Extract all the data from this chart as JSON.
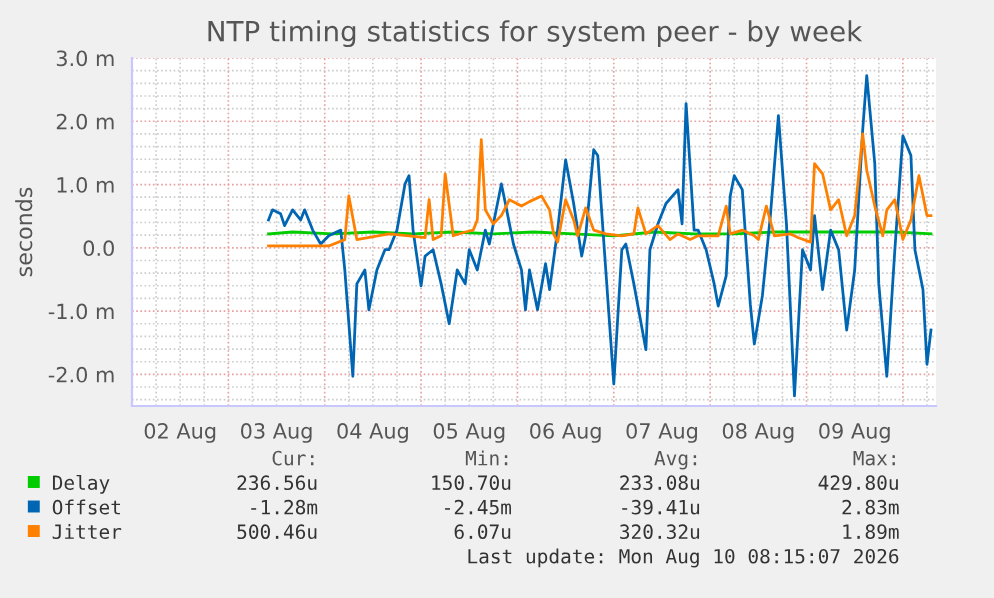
{
  "chart_data": {
    "type": "line",
    "title": "NTP timing statistics for system peer - by week",
    "ylabel": "seconds",
    "xlim": [
      "2026-08-02T00:00",
      "2026-08-10T08:15"
    ],
    "xticks": [
      {
        "value": "2026-08-02T12:00",
        "label": "02 Aug"
      },
      {
        "value": "2026-08-03T12:00",
        "label": "03 Aug"
      },
      {
        "value": "2026-08-04T12:00",
        "label": "04 Aug"
      },
      {
        "value": "2026-08-05T12:00",
        "label": "05 Aug"
      },
      {
        "value": "2026-08-06T12:00",
        "label": "06 Aug"
      },
      {
        "value": "2026-08-07T12:00",
        "label": "07 Aug"
      },
      {
        "value": "2026-08-08T12:00",
        "label": "08 Aug"
      },
      {
        "value": "2026-08-09T12:00",
        "label": "09 Aug"
      }
    ],
    "ylim": [
      -2.5,
      3.0
    ],
    "yticks": [
      {
        "value": -2.0,
        "label": "-2.0 m"
      },
      {
        "value": -1.0,
        "label": "-1.0 m"
      },
      {
        "value": 0.0,
        "label": "0.0"
      },
      {
        "value": 1.0,
        "label": "1.0 m"
      },
      {
        "value": 2.0,
        "label": "2.0 m"
      },
      {
        "value": 3.0,
        "label": "3.0 m"
      }
    ],
    "grid": true,
    "legend": "bottom",
    "marker": "none",
    "line_style": "solid",
    "annotations": [
      "Cur:",
      "Min:",
      "Avg:",
      "Max:",
      "236.56u",
      "150.70u",
      "233.08u",
      "429.80u",
      "-1.28m",
      "-2.45m",
      "-39.41u",
      "2.83m",
      "500.46u",
      "6.07u",
      "320.32u",
      "1.89m",
      "Last update: Mon Aug 10 08:15:07 2026"
    ],
    "series": [
      {
        "name": "Delay",
        "color": "#00cc00",
        "x": [
          "2026-08-03T10:00",
          "2026-08-03T16:00",
          "2026-08-04T02:00",
          "2026-08-04T12:00",
          "2026-08-04T22:00",
          "2026-08-05T08:00",
          "2026-08-05T18:00",
          "2026-08-06T04:00",
          "2026-08-06T14:00",
          "2026-08-07T00:00",
          "2026-08-07T10:00",
          "2026-08-07T20:00",
          "2026-08-08T06:00",
          "2026-08-08T16:00",
          "2026-08-09T02:00",
          "2026-08-09T12:00",
          "2026-08-09T22:00",
          "2026-08-10T07:00"
        ],
        "values": [
          0.22,
          0.25,
          0.22,
          0.25,
          0.22,
          0.25,
          0.22,
          0.25,
          0.22,
          0.19,
          0.25,
          0.22,
          0.22,
          0.25,
          0.25,
          0.25,
          0.25,
          0.22
        ]
      },
      {
        "name": "Offset",
        "color": "#0066b3",
        "x": [
          "2026-08-03T10:00",
          "2026-08-03T11:00",
          "2026-08-03T13:00",
          "2026-08-03T14:00",
          "2026-08-03T16:00",
          "2026-08-03T18:00",
          "2026-08-03T19:00",
          "2026-08-03T21:00",
          "2026-08-03T23:00",
          "2026-08-04T01:00",
          "2026-08-04T04:00",
          "2026-08-04T05:00",
          "2026-08-04T07:00",
          "2026-08-04T08:00",
          "2026-08-04T10:00",
          "2026-08-04T11:00",
          "2026-08-04T13:00",
          "2026-08-04T15:00",
          "2026-08-04T16:00",
          "2026-08-04T18:00",
          "2026-08-04T20:00",
          "2026-08-04T21:00",
          "2026-08-04T22:00",
          "2026-08-05T00:00",
          "2026-08-05T01:00",
          "2026-08-05T03:00",
          "2026-08-05T05:00",
          "2026-08-05T07:00",
          "2026-08-05T09:00",
          "2026-08-05T11:00",
          "2026-08-05T12:00",
          "2026-08-05T14:00",
          "2026-08-05T16:00",
          "2026-08-05T17:00",
          "2026-08-05T20:00",
          "2026-08-05T21:00",
          "2026-08-05T23:00",
          "2026-08-06T01:00",
          "2026-08-06T02:00",
          "2026-08-06T03:00",
          "2026-08-06T05:00",
          "2026-08-06T07:00",
          "2026-08-06T08:00",
          "2026-08-06T10:00",
          "2026-08-06T12:00",
          "2026-08-06T14:00",
          "2026-08-06T16:00",
          "2026-08-06T17:00",
          "2026-08-06T19:00",
          "2026-08-06T20:00",
          "2026-08-06T22:00",
          "2026-08-07T00:00",
          "2026-08-07T02:00",
          "2026-08-07T03:00",
          "2026-08-07T05:00",
          "2026-08-07T08:00",
          "2026-08-07T09:00",
          "2026-08-07T11:00",
          "2026-08-07T13:00",
          "2026-08-07T16:00",
          "2026-08-07T17:00",
          "2026-08-07T18:00",
          "2026-08-07T20:00",
          "2026-08-07T21:00",
          "2026-08-07T23:00",
          "2026-08-08T01:00",
          "2026-08-08T02:00",
          "2026-08-08T04:00",
          "2026-08-08T05:00",
          "2026-08-08T06:00",
          "2026-08-08T08:00",
          "2026-08-08T10:00",
          "2026-08-08T11:00",
          "2026-08-08T13:00",
          "2026-08-08T15:00",
          "2026-08-08T17:00",
          "2026-08-08T19:00",
          "2026-08-08T21:00",
          "2026-08-08T23:00",
          "2026-08-09T01:00",
          "2026-08-09T02:00",
          "2026-08-09T04:00",
          "2026-08-09T06:00",
          "2026-08-09T08:00",
          "2026-08-09T10:00",
          "2026-08-09T12:00",
          "2026-08-09T14:00",
          "2026-08-09T15:00",
          "2026-08-09T17:00",
          "2026-08-09T18:00",
          "2026-08-09T20:00",
          "2026-08-09T22:00",
          "2026-08-10T00:00",
          "2026-08-10T02:00",
          "2026-08-10T03:00",
          "2026-08-10T05:00",
          "2026-08-10T06:00",
          "2026-08-10T07:00"
        ],
        "values": [
          0.44,
          0.6,
          0.54,
          0.35,
          0.6,
          0.44,
          0.6,
          0.28,
          0.06,
          0.19,
          0.28,
          -0.35,
          -2.03,
          -0.57,
          -0.35,
          -0.98,
          -0.35,
          -0.03,
          -0.03,
          0.28,
          1.01,
          1.14,
          0.28,
          -0.6,
          -0.13,
          -0.03,
          -0.57,
          -1.2,
          -0.35,
          -0.57,
          -0.03,
          -0.35,
          0.28,
          0.06,
          1.01,
          0.7,
          0.06,
          -0.35,
          -0.98,
          -0.35,
          -0.98,
          -0.25,
          -0.66,
          0.28,
          1.39,
          0.7,
          -0.13,
          0.19,
          1.55,
          1.46,
          -0.35,
          -2.15,
          -0.03,
          0.06,
          -0.57,
          -1.61,
          -0.03,
          0.38,
          0.7,
          0.92,
          0.38,
          2.28,
          0.28,
          0.28,
          -0.03,
          -0.57,
          -0.92,
          -0.44,
          0.82,
          1.14,
          0.92,
          -0.89,
          -1.52,
          -0.76,
          0.51,
          2.09,
          0.38,
          -2.34,
          -0.03,
          -0.35,
          0.51,
          -0.66,
          0.28,
          -0.03,
          -1.3,
          -0.35,
          1.87,
          2.72,
          1.33,
          -0.57,
          -2.03,
          -0.03,
          1.77,
          1.46,
          -0.03,
          -0.66,
          -1.84,
          -1.3
        ]
      },
      {
        "name": "Jitter",
        "color": "#ff8000",
        "x": [
          "2026-08-03T10:00",
          "2026-08-04T01:00",
          "2026-08-04T05:00",
          "2026-08-04T06:00",
          "2026-08-04T08:00",
          "2026-08-04T16:00",
          "2026-08-04T21:00",
          "2026-08-05T01:00",
          "2026-08-05T02:00",
          "2026-08-05T03:00",
          "2026-08-05T05:00",
          "2026-08-05T06:00",
          "2026-08-05T08:00",
          "2026-08-05T11:00",
          "2026-08-05T13:00",
          "2026-08-05T14:00",
          "2026-08-05T15:00",
          "2026-08-05T16:00",
          "2026-08-05T18:00",
          "2026-08-05T20:00",
          "2026-08-05T22:00",
          "2026-08-06T01:00",
          "2026-08-06T03:00",
          "2026-08-06T06:00",
          "2026-08-06T08:00",
          "2026-08-06T09:00",
          "2026-08-06T10:00",
          "2026-08-06T12:00",
          "2026-08-06T14:00",
          "2026-08-06T15:00",
          "2026-08-06T17:00",
          "2026-08-06T19:00",
          "2026-08-06T22:00",
          "2026-08-07T02:00",
          "2026-08-07T05:00",
          "2026-08-07T06:00",
          "2026-08-07T08:00",
          "2026-08-07T11:00",
          "2026-08-07T14:00",
          "2026-08-07T16:00",
          "2026-08-07T19:00",
          "2026-08-07T21:00",
          "2026-08-08T02:00",
          "2026-08-08T04:00",
          "2026-08-08T05:00",
          "2026-08-08T08:00",
          "2026-08-08T11:00",
          "2026-08-08T12:00",
          "2026-08-08T14:00",
          "2026-08-08T16:00",
          "2026-08-08T20:00",
          "2026-08-08T22:00",
          "2026-08-09T01:00",
          "2026-08-09T02:00",
          "2026-08-09T04:00",
          "2026-08-09T06:00",
          "2026-08-09T08:00",
          "2026-08-09T10:00",
          "2026-08-09T12:00",
          "2026-08-09T14:00",
          "2026-08-09T15:00",
          "2026-08-09T17:00",
          "2026-08-09T19:00",
          "2026-08-09T20:00",
          "2026-08-09T22:00",
          "2026-08-10T00:00",
          "2026-08-10T02:00",
          "2026-08-10T04:00",
          "2026-08-10T06:00",
          "2026-08-10T07:00"
        ],
        "values": [
          0.03,
          0.03,
          0.13,
          0.82,
          0.13,
          0.22,
          0.19,
          0.16,
          0.76,
          0.13,
          0.19,
          1.17,
          0.19,
          0.25,
          0.28,
          0.44,
          1.71,
          0.6,
          0.38,
          0.51,
          0.76,
          0.66,
          0.73,
          0.82,
          0.6,
          0.22,
          0.09,
          0.76,
          0.44,
          0.19,
          0.63,
          0.28,
          0.22,
          0.19,
          0.22,
          0.63,
          0.22,
          0.35,
          0.13,
          0.22,
          0.13,
          0.19,
          0.19,
          0.66,
          0.22,
          0.28,
          0.19,
          0.13,
          0.66,
          0.19,
          0.22,
          0.16,
          0.09,
          1.33,
          1.17,
          0.6,
          0.76,
          0.19,
          0.51,
          1.8,
          1.23,
          0.66,
          0.19,
          0.6,
          0.76,
          0.13,
          0.44,
          1.14,
          0.51,
          0.51
        ]
      }
    ]
  }
}
